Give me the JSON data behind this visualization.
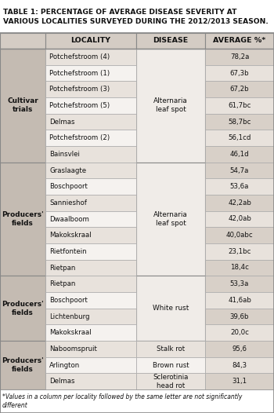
{
  "title": "TABLE 1: PERCENTAGE OF AVERAGE DISEASE SEVERITY AT\nVARIOUS LOCALITIES SURVEYED DURING THE 2012/2013 SEASON.",
  "footer": "*Values in a column per locality followed by the same letter are not significantly\ndifferent",
  "col_headers": [
    "",
    "LOCALITY",
    "DISEASE",
    "AVERAGE %*"
  ],
  "sections": [
    {
      "row_header": "Cultivar\ntrials",
      "disease_label": "Alternaria\nleaf spot",
      "disease_row_idx": 0,
      "rows": [
        {
          "locality": "Potchefstroom (4)",
          "average": "78,2a"
        },
        {
          "locality": "Potchefstroom (1)",
          "average": "67,3b"
        },
        {
          "locality": "Potchefstroom (3)",
          "average": "67,2b"
        },
        {
          "locality": "Potchefstroom (5)",
          "average": "61,7bc"
        },
        {
          "locality": "Delmas",
          "average": "58,7bc"
        },
        {
          "locality": "Potchefstroom (2)",
          "average": "56,1cd"
        },
        {
          "locality": "Bainsvlei",
          "average": "46,1d"
        }
      ]
    },
    {
      "row_header": "Producers'\nfields",
      "disease_label": "Alternaria\nleaf spot",
      "disease_row_idx": 0,
      "rows": [
        {
          "locality": "Graslaagte",
          "average": "54,7a"
        },
        {
          "locality": "Boschpoort",
          "average": "53,6a"
        },
        {
          "locality": "Sannieshof",
          "average": "42,2ab"
        },
        {
          "locality": "Dwaalboom",
          "average": "42,0ab"
        },
        {
          "locality": "Makokskraal",
          "average": "40,0abc"
        },
        {
          "locality": "Rietfontein",
          "average": "23,1bc"
        },
        {
          "locality": "Rietpan",
          "average": "18,4c"
        }
      ]
    },
    {
      "row_header": "Producers'\nfields",
      "disease_label": "White rust",
      "disease_row_idx": 0,
      "rows": [
        {
          "locality": "Rietpan",
          "average": "53,3a"
        },
        {
          "locality": "Boschpoort",
          "average": "41,6ab"
        },
        {
          "locality": "Lichtenburg",
          "average": "39,6b"
        },
        {
          "locality": "Makokskraal",
          "average": "20,0c"
        }
      ]
    },
    {
      "row_header": "Producers'\nfields",
      "disease_label": "",
      "disease_row_idx": -1,
      "rows": [
        {
          "locality": "Naboomspruit",
          "disease_own": "Stalk rot",
          "average": "95,6"
        },
        {
          "locality": "Arlington",
          "disease_own": "Brown rust",
          "average": "84,3"
        },
        {
          "locality": "Delmas",
          "disease_own": "Sclerotinia\nhead rot",
          "average": "31,1"
        }
      ]
    }
  ],
  "colors": {
    "header_bg": "#d4ccc4",
    "section_header_bg": "#c4bbb2",
    "locality_odd_bg": "#e8e2dc",
    "locality_even_bg": "#f5f2ef",
    "disease_bg": "#f0ece8",
    "avg_odd_bg": "#d8d0c8",
    "avg_even_bg": "#e8e2dc",
    "border_heavy": "#888888",
    "border_light": "#aaaaaa",
    "text_dark": "#111111",
    "white": "#ffffff"
  }
}
